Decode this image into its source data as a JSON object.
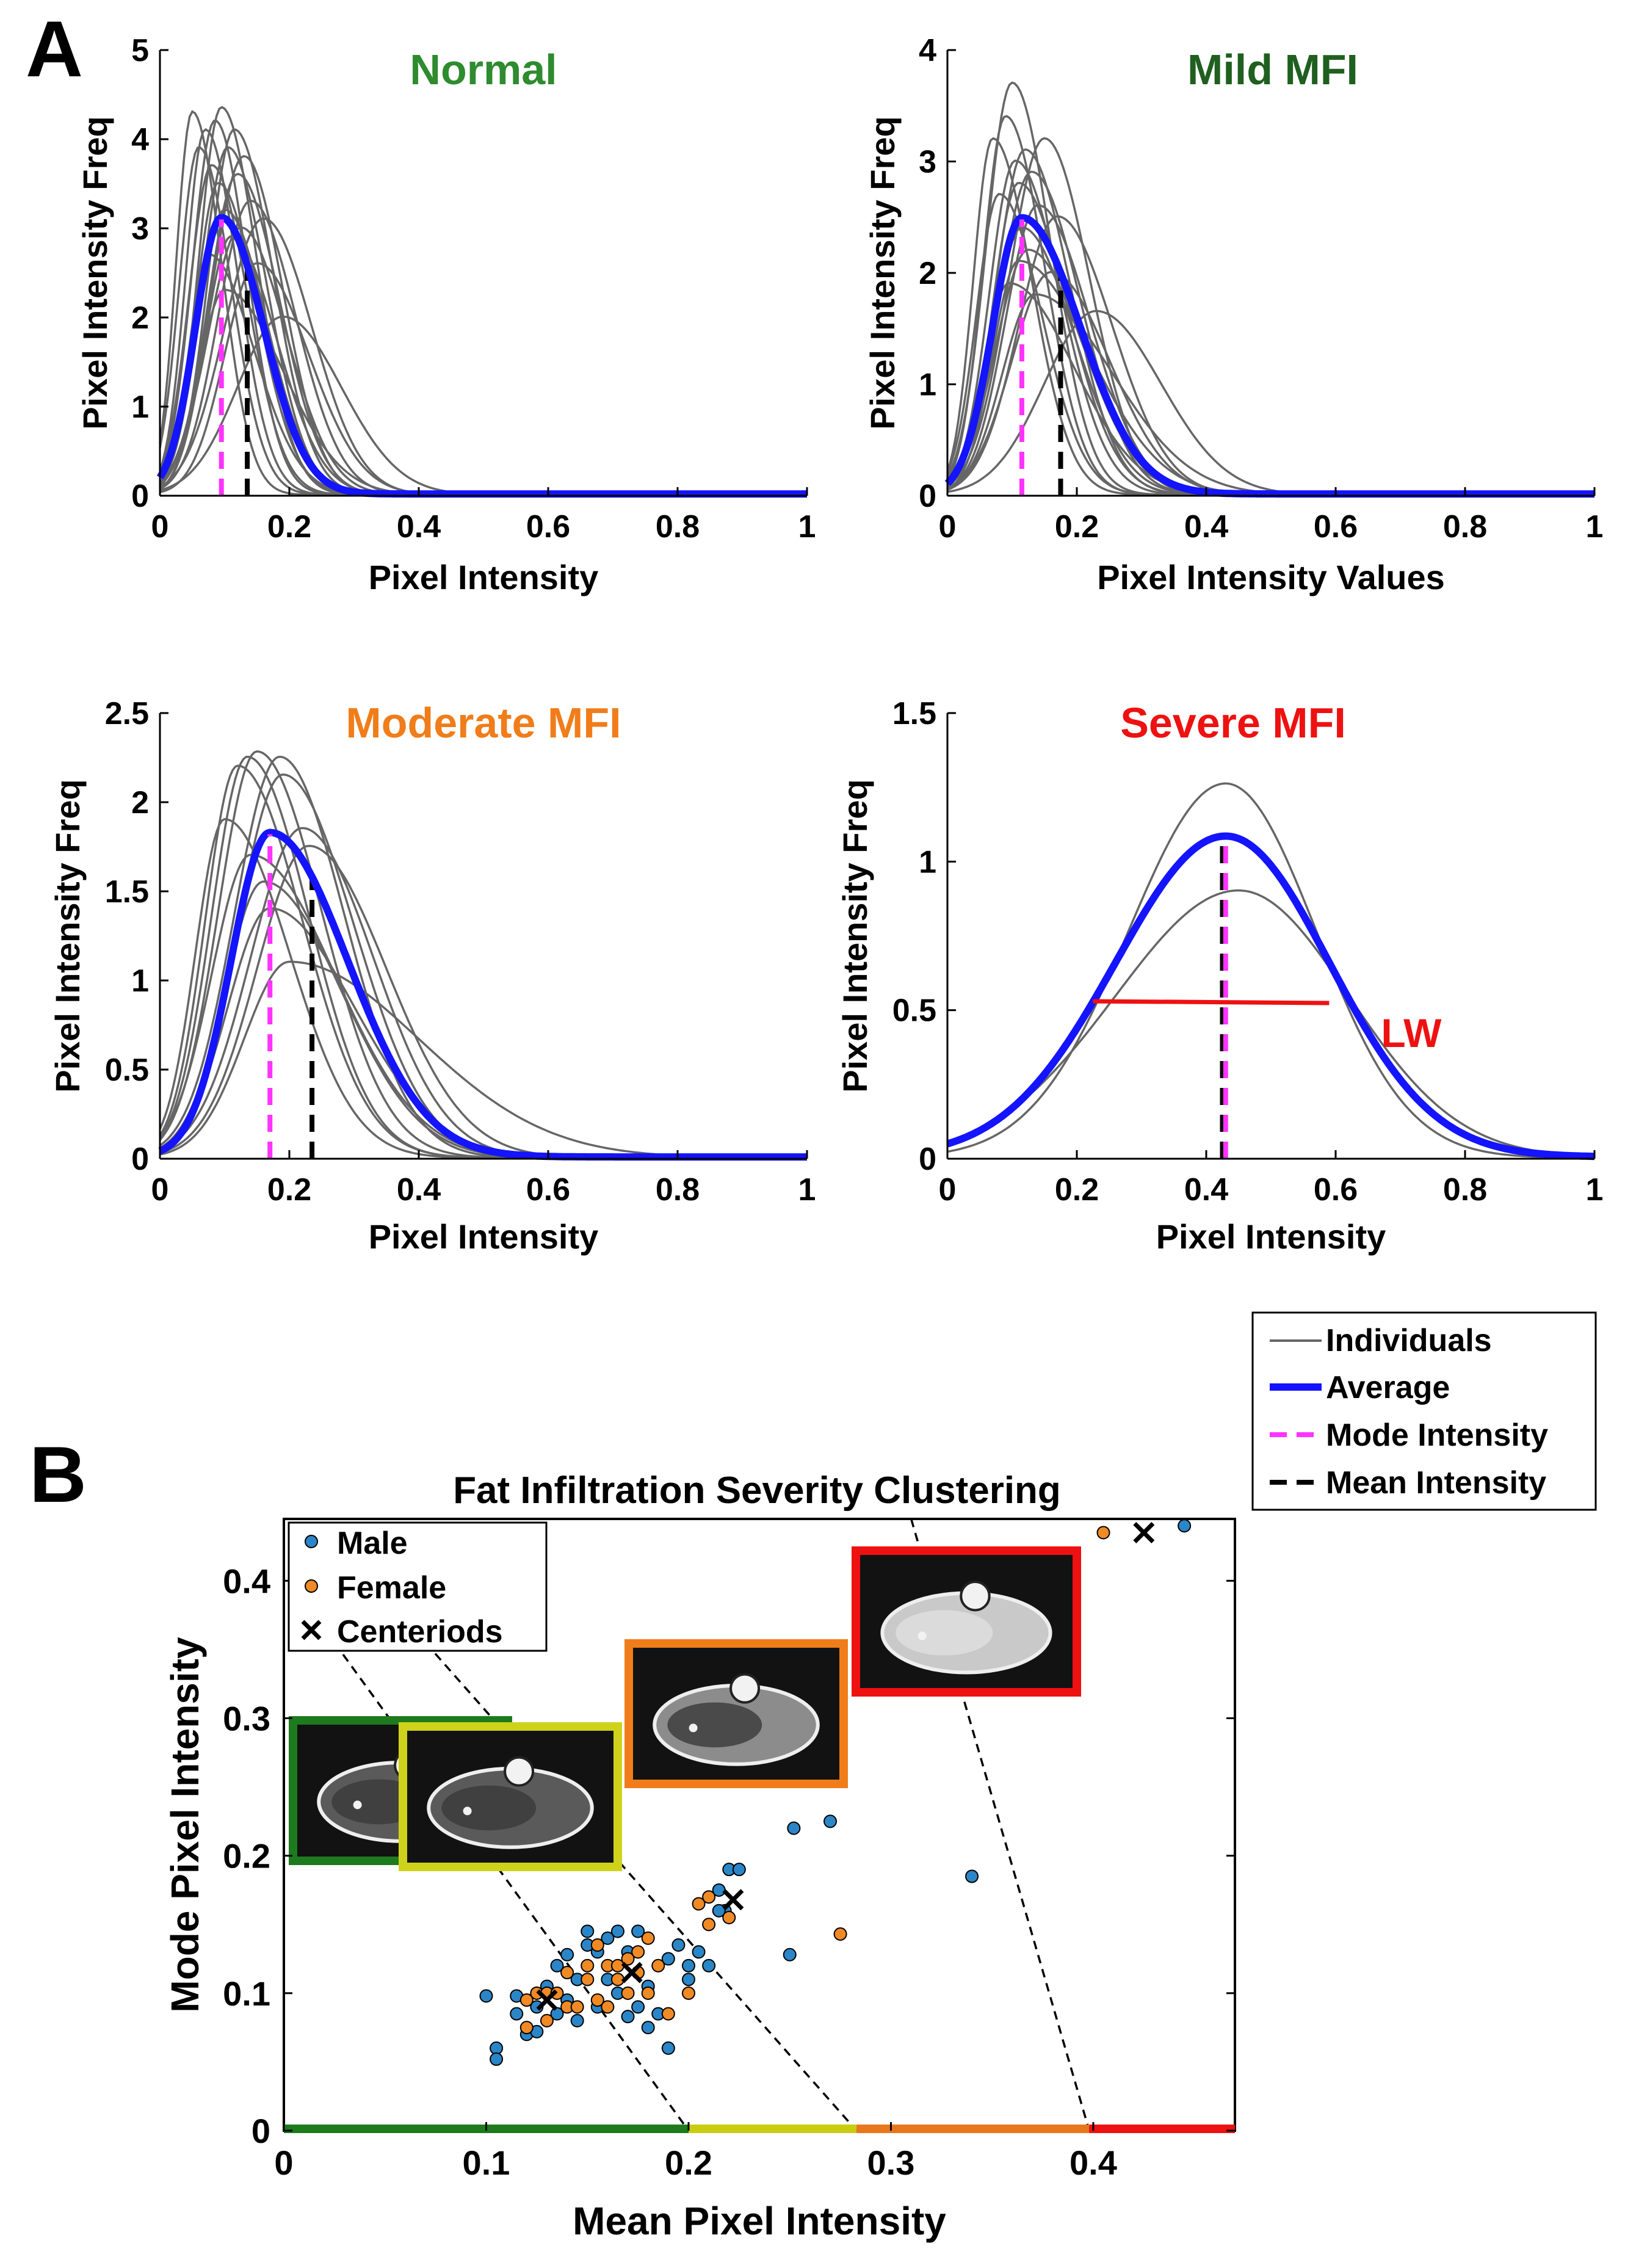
{
  "panel_labels": {
    "a": "A",
    "b": "B"
  },
  "colors": {
    "individual": "#666666",
    "average": "#1414ff",
    "mode": "#ff33ff",
    "mean": "#000000",
    "lw": "#ee1111",
    "male": "#2b86c8",
    "female": "#f08a24",
    "normal": "#2e8b2e",
    "mild": "#1f5f1f",
    "moderate": "#f07d1a",
    "severe": "#ee1111",
    "band_green": "#1d7a1d",
    "band_yellow": "#c9cc10",
    "band_orange": "#e8761a",
    "band_red": "#ee1111",
    "frame_green": "#1e7a1e",
    "frame_yellow": "#cfd21a",
    "frame_orange": "#f07d1a",
    "frame_red": "#ee1111"
  },
  "legend_a": {
    "individuals": "Individuals",
    "average": "Average",
    "mode": "Mode Intensity",
    "mean": "Mean Intensity"
  },
  "lw_label": "LW",
  "chart_data": [
    {
      "id": "normal",
      "type": "line",
      "title": "Normal",
      "xlabel": "Pixel Intensity",
      "ylabel": "Pixel Intensity Freq",
      "xlim": [
        0,
        1
      ],
      "ylim": [
        0,
        5
      ],
      "xticks": [
        "0",
        "0.2",
        "0.4",
        "0.6",
        "0.8",
        "1"
      ],
      "yticks": [
        "0",
        "1",
        "2",
        "3",
        "4",
        "5"
      ],
      "mode_intensity": 0.095,
      "mean_intensity": 0.135,
      "average": {
        "peak_x": 0.095,
        "peak_y": 3.1,
        "sigma_left": 0.04,
        "sigma_right": 0.065
      },
      "individuals": [
        {
          "peak_x": 0.05,
          "peak_y": 4.3,
          "sigma_left": 0.025,
          "sigma_right": 0.045
        },
        {
          "peak_x": 0.06,
          "peak_y": 3.9,
          "sigma_left": 0.03,
          "sigma_right": 0.05
        },
        {
          "peak_x": 0.07,
          "peak_y": 4.1,
          "sigma_left": 0.03,
          "sigma_right": 0.05
        },
        {
          "peak_x": 0.08,
          "peak_y": 3.7,
          "sigma_left": 0.035,
          "sigma_right": 0.055
        },
        {
          "peak_x": 0.085,
          "peak_y": 4.2,
          "sigma_left": 0.035,
          "sigma_right": 0.05
        },
        {
          "peak_x": 0.09,
          "peak_y": 3.5,
          "sigma_left": 0.035,
          "sigma_right": 0.06
        },
        {
          "peak_x": 0.095,
          "peak_y": 4.35,
          "sigma_left": 0.035,
          "sigma_right": 0.055
        },
        {
          "peak_x": 0.1,
          "peak_y": 3.2,
          "sigma_left": 0.04,
          "sigma_right": 0.065
        },
        {
          "peak_x": 0.105,
          "peak_y": 3.9,
          "sigma_left": 0.04,
          "sigma_right": 0.06
        },
        {
          "peak_x": 0.11,
          "peak_y": 2.9,
          "sigma_left": 0.04,
          "sigma_right": 0.07
        },
        {
          "peak_x": 0.115,
          "peak_y": 4.1,
          "sigma_left": 0.04,
          "sigma_right": 0.06
        },
        {
          "peak_x": 0.12,
          "peak_y": 3.6,
          "sigma_left": 0.045,
          "sigma_right": 0.065
        },
        {
          "peak_x": 0.125,
          "peak_y": 3.0,
          "sigma_left": 0.05,
          "sigma_right": 0.07
        },
        {
          "peak_x": 0.13,
          "peak_y": 3.8,
          "sigma_left": 0.05,
          "sigma_right": 0.06
        },
        {
          "peak_x": 0.14,
          "peak_y": 3.3,
          "sigma_left": 0.05,
          "sigma_right": 0.07
        },
        {
          "peak_x": 0.15,
          "peak_y": 2.6,
          "sigma_left": 0.05,
          "sigma_right": 0.08
        },
        {
          "peak_x": 0.16,
          "peak_y": 3.1,
          "sigma_left": 0.06,
          "sigma_right": 0.075
        },
        {
          "peak_x": 0.19,
          "peak_y": 2.0,
          "sigma_left": 0.07,
          "sigma_right": 0.09
        },
        {
          "peak_x": 0.075,
          "peak_y": 2.7,
          "sigma_left": 0.03,
          "sigma_right": 0.07
        },
        {
          "peak_x": 0.1,
          "peak_y": 2.3,
          "sigma_left": 0.04,
          "sigma_right": 0.09
        }
      ]
    },
    {
      "id": "mild",
      "type": "line",
      "title": "Mild MFI",
      "xlabel": "Pixel Intensity Values",
      "ylabel": "Pixel Intensity Freq",
      "xlim": [
        0,
        1
      ],
      "ylim": [
        0,
        4
      ],
      "xticks": [
        "0",
        "0.2",
        "0.4",
        "0.6",
        "0.8",
        "1"
      ],
      "yticks": [
        "0",
        "1",
        "2",
        "3",
        "4"
      ],
      "mode_intensity": 0.115,
      "mean_intensity": 0.175,
      "average": {
        "peak_x": 0.115,
        "peak_y": 2.48,
        "sigma_left": 0.045,
        "sigma_right": 0.09
      },
      "individuals": [
        {
          "peak_x": 0.07,
          "peak_y": 3.2,
          "sigma_left": 0.03,
          "sigma_right": 0.06
        },
        {
          "peak_x": 0.08,
          "peak_y": 2.7,
          "sigma_left": 0.035,
          "sigma_right": 0.065
        },
        {
          "peak_x": 0.09,
          "peak_y": 3.4,
          "sigma_left": 0.035,
          "sigma_right": 0.06
        },
        {
          "peak_x": 0.1,
          "peak_y": 3.7,
          "sigma_left": 0.04,
          "sigma_right": 0.06
        },
        {
          "peak_x": 0.105,
          "peak_y": 3.0,
          "sigma_left": 0.04,
          "sigma_right": 0.07
        },
        {
          "peak_x": 0.11,
          "peak_y": 2.8,
          "sigma_left": 0.04,
          "sigma_right": 0.075
        },
        {
          "peak_x": 0.115,
          "peak_y": 2.4,
          "sigma_left": 0.045,
          "sigma_right": 0.08
        },
        {
          "peak_x": 0.12,
          "peak_y": 3.1,
          "sigma_left": 0.045,
          "sigma_right": 0.07
        },
        {
          "peak_x": 0.125,
          "peak_y": 2.2,
          "sigma_left": 0.05,
          "sigma_right": 0.085
        },
        {
          "peak_x": 0.13,
          "peak_y": 2.9,
          "sigma_left": 0.05,
          "sigma_right": 0.075
        },
        {
          "peak_x": 0.14,
          "peak_y": 2.6,
          "sigma_left": 0.05,
          "sigma_right": 0.08
        },
        {
          "peak_x": 0.15,
          "peak_y": 3.2,
          "sigma_left": 0.055,
          "sigma_right": 0.07
        },
        {
          "peak_x": 0.16,
          "peak_y": 2.0,
          "sigma_left": 0.06,
          "sigma_right": 0.09
        },
        {
          "peak_x": 0.17,
          "peak_y": 2.5,
          "sigma_left": 0.06,
          "sigma_right": 0.085
        },
        {
          "peak_x": 0.095,
          "peak_y": 1.9,
          "sigma_left": 0.04,
          "sigma_right": 0.1
        },
        {
          "peak_x": 0.23,
          "peak_y": 1.65,
          "sigma_left": 0.08,
          "sigma_right": 0.1
        },
        {
          "peak_x": 0.11,
          "peak_y": 2.1,
          "sigma_left": 0.04,
          "sigma_right": 0.11
        },
        {
          "peak_x": 0.135,
          "peak_y": 1.8,
          "sigma_left": 0.05,
          "sigma_right": 0.12
        }
      ]
    },
    {
      "id": "moderate",
      "type": "line",
      "title": "Moderate MFI",
      "xlabel": "Pixel Intensity",
      "ylabel": "Pixel Intensity Freq",
      "xlim": [
        0,
        1
      ],
      "ylim": [
        0,
        2.5
      ],
      "xticks": [
        "0",
        "0.2",
        "0.4",
        "0.6",
        "0.8",
        "1"
      ],
      "yticks": [
        "0",
        "0.5",
        "1",
        "1.5",
        "2",
        "2.5"
      ],
      "mode_intensity": 0.17,
      "mean_intensity": 0.235,
      "average": {
        "peak_x": 0.17,
        "peak_y": 1.82,
        "sigma_left": 0.06,
        "sigma_right": 0.12
      },
      "individuals": [
        {
          "peak_x": 0.1,
          "peak_y": 1.9,
          "sigma_left": 0.045,
          "sigma_right": 0.1
        },
        {
          "peak_x": 0.12,
          "peak_y": 2.2,
          "sigma_left": 0.05,
          "sigma_right": 0.1
        },
        {
          "peak_x": 0.135,
          "peak_y": 2.25,
          "sigma_left": 0.055,
          "sigma_right": 0.095
        },
        {
          "peak_x": 0.15,
          "peak_y": 2.28,
          "sigma_left": 0.06,
          "sigma_right": 0.1
        },
        {
          "peak_x": 0.16,
          "peak_y": 1.55,
          "sigma_left": 0.06,
          "sigma_right": 0.12
        },
        {
          "peak_x": 0.17,
          "peak_y": 1.4,
          "sigma_left": 0.065,
          "sigma_right": 0.13
        },
        {
          "peak_x": 0.185,
          "peak_y": 2.25,
          "sigma_left": 0.07,
          "sigma_right": 0.1
        },
        {
          "peak_x": 0.19,
          "peak_y": 2.15,
          "sigma_left": 0.07,
          "sigma_right": 0.11
        },
        {
          "peak_x": 0.2,
          "peak_y": 1.1,
          "sigma_left": 0.07,
          "sigma_right": 0.2
        },
        {
          "peak_x": 0.22,
          "peak_y": 1.85,
          "sigma_left": 0.08,
          "sigma_right": 0.11
        },
        {
          "peak_x": 0.23,
          "peak_y": 1.75,
          "sigma_left": 0.08,
          "sigma_right": 0.12
        },
        {
          "peak_x": 0.14,
          "peak_y": 1.7,
          "sigma_left": 0.06,
          "sigma_right": 0.13
        }
      ]
    },
    {
      "id": "severe",
      "type": "line",
      "title": "Severe MFI",
      "xlabel": "Pixel Intensity",
      "ylabel": "Pixel Intensity Freq",
      "xlim": [
        0,
        1
      ],
      "ylim": [
        0,
        1.5
      ],
      "xticks": [
        "0",
        "0.2",
        "0.4",
        "0.6",
        "0.8",
        "1"
      ],
      "yticks": [
        "0",
        "0.5",
        "1",
        "1.5"
      ],
      "mode_intensity": 0.43,
      "mean_intensity": 0.425,
      "lw": {
        "x_start": 0.225,
        "x_end": 0.59,
        "y": 0.53
      },
      "average": {
        "peak_x": 0.43,
        "peak_y": 1.08,
        "sigma_left": 0.17,
        "sigma_right": 0.16
      },
      "individuals": [
        {
          "peak_x": 0.43,
          "peak_y": 1.26,
          "sigma_left": 0.15,
          "sigma_right": 0.14
        },
        {
          "peak_x": 0.45,
          "peak_y": 0.9,
          "sigma_left": 0.19,
          "sigma_right": 0.17
        }
      ]
    },
    {
      "id": "clustering",
      "type": "scatter",
      "title": "Fat Infiltration Severity Clustering",
      "xlabel": "Mean Pixel Intensity",
      "ylabel": "Mode Pixel Intensity",
      "xlim": [
        0,
        0.47
      ],
      "ylim": [
        0,
        0.445
      ],
      "xticks": [
        "0",
        "0.1",
        "0.2",
        "0.3",
        "0.4"
      ],
      "yticks": [
        "0",
        "0.1",
        "0.2",
        "0.3",
        "0.4"
      ],
      "legend": {
        "male": "Male",
        "female": "Female",
        "centroids": "Centeriods"
      },
      "male": [
        [
          0.105,
          0.06
        ],
        [
          0.105,
          0.052
        ],
        [
          0.1,
          0.098
        ],
        [
          0.115,
          0.098
        ],
        [
          0.115,
          0.085
        ],
        [
          0.12,
          0.07
        ],
        [
          0.125,
          0.09
        ],
        [
          0.125,
          0.072
        ],
        [
          0.13,
          0.105
        ],
        [
          0.135,
          0.085
        ],
        [
          0.135,
          0.12
        ],
        [
          0.14,
          0.095
        ],
        [
          0.14,
          0.128
        ],
        [
          0.145,
          0.08
        ],
        [
          0.145,
          0.11
        ],
        [
          0.15,
          0.145
        ],
        [
          0.15,
          0.135
        ],
        [
          0.155,
          0.09
        ],
        [
          0.155,
          0.13
        ],
        [
          0.16,
          0.11
        ],
        [
          0.16,
          0.14
        ],
        [
          0.165,
          0.1
        ],
        [
          0.165,
          0.145
        ],
        [
          0.17,
          0.13
        ],
        [
          0.17,
          0.083
        ],
        [
          0.175,
          0.145
        ],
        [
          0.175,
          0.09
        ],
        [
          0.18,
          0.075
        ],
        [
          0.18,
          0.105
        ],
        [
          0.185,
          0.085
        ],
        [
          0.19,
          0.06
        ],
        [
          0.19,
          0.125
        ],
        [
          0.195,
          0.135
        ],
        [
          0.2,
          0.12
        ],
        [
          0.2,
          0.11
        ],
        [
          0.205,
          0.13
        ],
        [
          0.21,
          0.12
        ],
        [
          0.215,
          0.175
        ],
        [
          0.218,
          0.16
        ],
        [
          0.22,
          0.19
        ],
        [
          0.225,
          0.19
        ],
        [
          0.215,
          0.16
        ],
        [
          0.25,
          0.128
        ],
        [
          0.252,
          0.22
        ],
        [
          0.27,
          0.225
        ],
        [
          0.34,
          0.185
        ],
        [
          0.445,
          0.44
        ]
      ],
      "female": [
        [
          0.12,
          0.075
        ],
        [
          0.12,
          0.095
        ],
        [
          0.125,
          0.1
        ],
        [
          0.13,
          0.08
        ],
        [
          0.13,
          0.1
        ],
        [
          0.135,
          0.1
        ],
        [
          0.14,
          0.09
        ],
        [
          0.14,
          0.115
        ],
        [
          0.145,
          0.09
        ],
        [
          0.15,
          0.11
        ],
        [
          0.15,
          0.12
        ],
        [
          0.155,
          0.095
        ],
        [
          0.155,
          0.135
        ],
        [
          0.16,
          0.09
        ],
        [
          0.16,
          0.12
        ],
        [
          0.165,
          0.11
        ],
        [
          0.165,
          0.12
        ],
        [
          0.17,
          0.125
        ],
        [
          0.17,
          0.1
        ],
        [
          0.175,
          0.115
        ],
        [
          0.175,
          0.13
        ],
        [
          0.18,
          0.1
        ],
        [
          0.18,
          0.14
        ],
        [
          0.185,
          0.12
        ],
        [
          0.19,
          0.085
        ],
        [
          0.2,
          0.1
        ],
        [
          0.205,
          0.165
        ],
        [
          0.21,
          0.17
        ],
        [
          0.21,
          0.15
        ],
        [
          0.22,
          0.155
        ],
        [
          0.275,
          0.143
        ],
        [
          0.405,
          0.435
        ]
      ],
      "centroids": [
        [
          0.13,
          0.095
        ],
        [
          0.172,
          0.115
        ],
        [
          0.222,
          0.168
        ],
        [
          0.425,
          0.435
        ]
      ],
      "boundaries": [
        {
          "x": [
            0.025,
            0.2
          ],
          "y": [
            0.355,
            0.0
          ]
        },
        {
          "x": [
            0.07,
            0.283
          ],
          "y": [
            0.355,
            0.0
          ]
        },
        {
          "x": [
            0.31,
            0.398
          ],
          "y": [
            0.445,
            0.0
          ]
        }
      ],
      "severity_band": [
        {
          "x": [
            0,
            0.2
          ],
          "color": "#1d7a1d"
        },
        {
          "x": [
            0.2,
            0.283
          ],
          "color": "#c9cc10"
        },
        {
          "x": [
            0.283,
            0.398
          ],
          "color": "#e8761a"
        },
        {
          "x": [
            0.398,
            0.47
          ],
          "color": "#ee1111"
        }
      ],
      "mri_insets": [
        {
          "name": "normal",
          "frame": "#1e7a1e"
        },
        {
          "name": "mild",
          "frame": "#cfd21a"
        },
        {
          "name": "moderate",
          "frame": "#f07d1a"
        },
        {
          "name": "severe",
          "frame": "#ee1111"
        }
      ]
    }
  ]
}
